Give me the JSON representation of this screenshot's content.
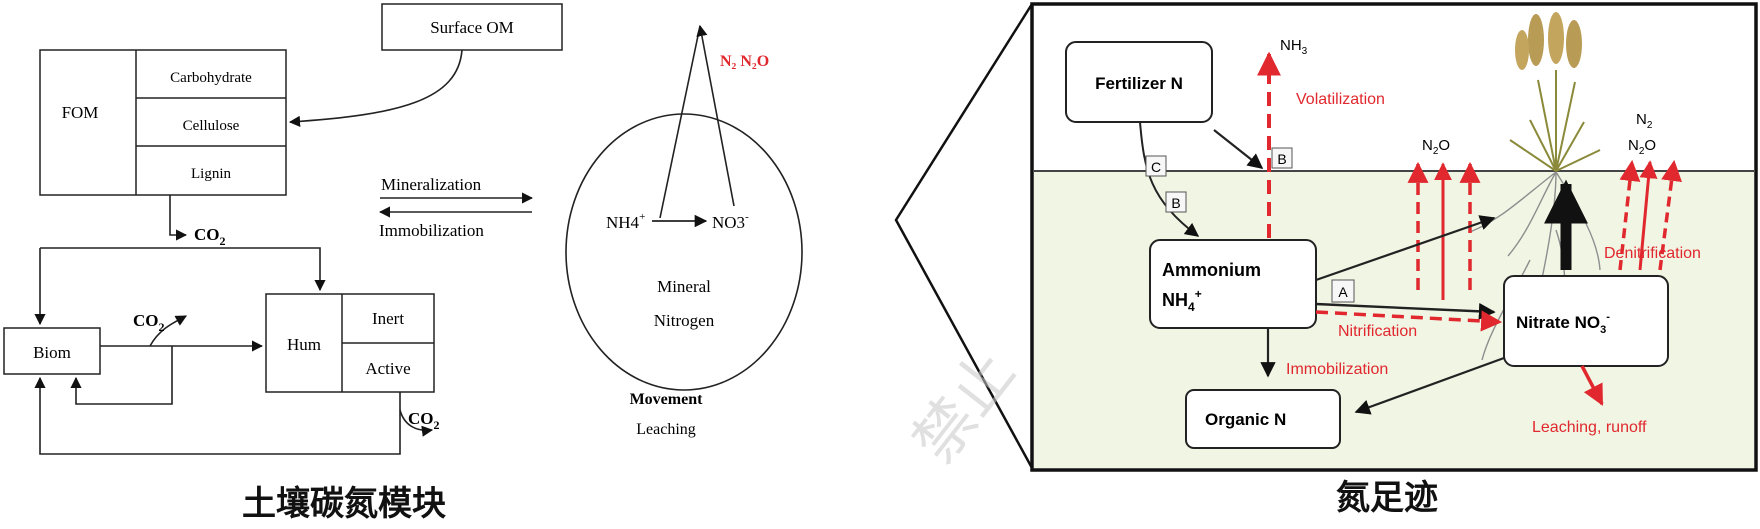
{
  "left": {
    "surface_om": "Surface OM",
    "fom": "FOM",
    "carbohydrate": "Carbohydrate",
    "cellulose": "Cellulose",
    "lignin": "Lignin",
    "co2_1": "CO",
    "co2_2": "CO",
    "co2_3": "CO",
    "co2_sub": "2",
    "biom": "Biom",
    "hum": "Hum",
    "inert": "Inert",
    "active": "Active",
    "mineralization": "Mineralization",
    "immobilization": "Immobilization",
    "n2_n2o": "N₂ N₂O",
    "nh4": "NH4",
    "nh4_sup": "+",
    "no3": "NO3",
    "no3_sup": "-",
    "mineral": "Mineral",
    "nitrogen": "Nitrogen",
    "movement": "Movement",
    "leaching": "Leaching",
    "caption": "土壤碳氮模块"
  },
  "right": {
    "fertilizer": "Fertilizer N",
    "nh3": "NH",
    "nh3_sub": "3",
    "volatilization": "Volatilization",
    "label_b1": "B",
    "label_c": "C",
    "label_b2": "B",
    "label_a": "A",
    "n2o_1": "N",
    "n2o_1_sub": "2",
    "n2o_1_tail": "O",
    "n2": "N",
    "n2_sub": "2",
    "n2o_2": "N",
    "n2o_2_sub": "2",
    "n2o_2_tail": "O",
    "ammonium": "Ammonium",
    "nh4": "NH",
    "nh4_sub": "4",
    "nh4_sup": "+",
    "nitrate": "Nitrate NO",
    "nitrate_sub": "3",
    "nitrate_sup": "-",
    "nitrification": "Nitrification",
    "denitrification": "Denitrification",
    "immobilization": "Immobilization",
    "organic": "Organic N",
    "leaching": "Leaching, runoff",
    "caption": "氮足迹"
  },
  "watermark": "禁止",
  "colors": {
    "red": "#e0282e",
    "dark": "#111111",
    "soil": "#f1f5e4"
  }
}
